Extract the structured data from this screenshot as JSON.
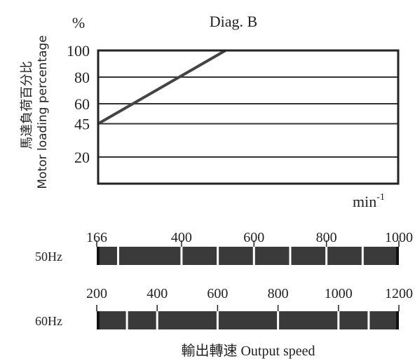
{
  "chart_data": {
    "type": "line",
    "title": "Diag. B",
    "y_unit": "%",
    "ylabel_cn": "馬達負荷百分比",
    "ylabel_en": "Motor loading percentage",
    "x_unit": "min",
    "x_unit_exp": "-1",
    "y_ticks": [
      100,
      80,
      60,
      45,
      20
    ],
    "grid": true,
    "x": [
      166,
      520
    ],
    "series": [
      {
        "values": [
          45,
          100
        ]
      }
    ],
    "xlim": [
      166,
      1000
    ],
    "speed_scales": [
      {
        "label": "50Hz",
        "range": [
          166,
          1000
        ],
        "tick_labels": [
          166,
          400,
          600,
          800,
          1000
        ],
        "segment_dividers": [
          225,
          400,
          500,
          600,
          700,
          800,
          900
        ]
      },
      {
        "label": "60Hz",
        "range": [
          200,
          1200
        ],
        "tick_labels": [
          200,
          400,
          600,
          800,
          1000,
          1200
        ],
        "segment_dividers": [
          300,
          400,
          600,
          800,
          1000,
          1100
        ]
      }
    ],
    "xlabel": "輸出轉速 Output speed"
  }
}
